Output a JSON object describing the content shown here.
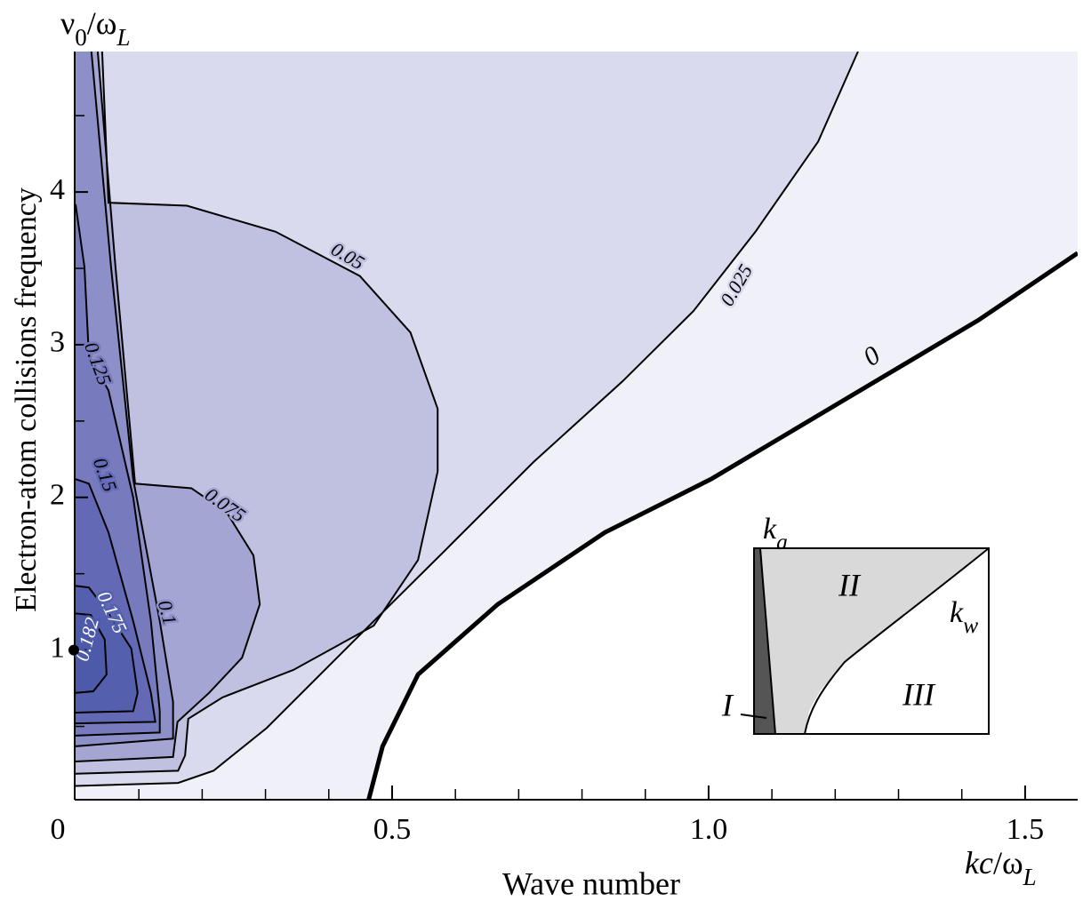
{
  "chart_data": {
    "type": "contour",
    "x_title": "Wave number",
    "y_title": "Electron-atom collisions frequency",
    "x_unit": [
      {
        "text": "kc",
        "italic": true
      },
      {
        "text": "/ω"
      },
      {
        "text": "L",
        "sub": true,
        "italic": true
      }
    ],
    "y_unit": [
      {
        "text": "ν"
      },
      {
        "text": "0",
        "sub": true
      },
      {
        "text": "/ω"
      },
      {
        "text": "L",
        "sub": true,
        "italic": true
      }
    ],
    "xlim": [
      0,
      1.583
    ],
    "ylim": [
      0.02,
      4.92
    ],
    "xticks": [
      0,
      0.5,
      {
        "value": 1,
        "label": "1.0"
      },
      1.5
    ],
    "xminorticks": [
      0.1,
      0.2,
      0.3,
      0.4,
      0.6,
      0.7,
      0.8,
      0.9,
      1.1,
      1.2,
      1.3,
      1.4
    ],
    "yticks": [
      1,
      2,
      3,
      4
    ],
    "yminorticks": [
      0.5,
      1.5,
      2.5,
      3.5,
      4.5
    ],
    "contours": [
      {
        "level": 0,
        "color": "#eff0f8",
        "x": [
          0.463,
          0.485,
          0.541,
          0.667,
          0.836,
          1.004,
          1.215,
          1.426,
          1.583
        ],
        "y": [
          0.02,
          0.37,
          0.84,
          1.3,
          1.77,
          2.12,
          2.64,
          3.16,
          3.6
        ]
      },
      {
        "level": 0.025,
        "color": "#d9daed",
        "x": [
          0,
          0.162,
          0.218,
          0.302,
          0.442,
          0.583,
          0.723,
          0.864,
          0.976,
          1.074,
          1.173,
          1.236
        ],
        "y": [
          0.11,
          0.13,
          0.21,
          0.49,
          1.07,
          1.65,
          2.23,
          2.76,
          3.22,
          3.74,
          4.33,
          4.92
        ]
      },
      {
        "level": 0.05,
        "color": "#c0c1e1",
        "x": [
          0,
          0.162,
          0.173,
          0.178,
          0.232,
          0.344,
          0.471,
          0.541,
          0.572,
          0.572,
          0.529,
          0.449,
          0.316,
          0.176,
          0.052,
          0.042
        ],
        "y": [
          0.19,
          0.21,
          0.31,
          0.55,
          0.69,
          0.87,
          1.16,
          1.59,
          2.17,
          2.58,
          3.08,
          3.45,
          3.74,
          3.91,
          3.93,
          4.92
        ]
      },
      {
        "level": 0.075,
        "color": "#a4a5d3",
        "x": [
          0,
          0.154,
          0.161,
          0.211,
          0.263,
          0.291,
          0.281,
          0.239,
          0.183,
          0.094,
          0.063,
          0.035
        ],
        "y": [
          0.27,
          0.3,
          0.53,
          0.72,
          0.95,
          1.3,
          1.62,
          1.9,
          2.06,
          2.09,
          3.51,
          4.92
        ]
      },
      {
        "level": 0.1,
        "color": "#8d90c8",
        "x": [
          0,
          0.154,
          0.154,
          0.133,
          0.091,
          0.056,
          0.025
        ],
        "y": [
          0.37,
          0.42,
          0.66,
          1.19,
          2.12,
          3.51,
          4.92
        ]
      },
      {
        "level": 0.125,
        "color": "#777bbe",
        "x": [
          0,
          0.133,
          0.133,
          0.119,
          0.091,
          0.052,
          0.021,
          0.014,
          0
        ],
        "y": [
          0.44,
          0.46,
          0.6,
          1.19,
          2.0,
          2.7,
          2.93,
          3.51,
          3.92
        ]
      },
      {
        "level": 0.15,
        "color": "#6369b4",
        "x": [
          0,
          0.126,
          0.119,
          0.091,
          0.052,
          0.021,
          0
        ],
        "y": [
          0.52,
          0.53,
          0.72,
          1.19,
          1.77,
          2.09,
          2.12
        ]
      },
      {
        "level": 0.175,
        "color": "#5460ad",
        "x": [
          0,
          0.091,
          0.098,
          0.088,
          0.052,
          0.021,
          0
        ],
        "y": [
          0.59,
          0.6,
          0.72,
          1.01,
          1.24,
          1.41,
          1.42
        ]
      },
      {
        "level": 0.182,
        "color": "#4d5aa9",
        "x": [
          0,
          0.028,
          0.049,
          0.046,
          0.024,
          0
        ],
        "y": [
          0.72,
          0.73,
          0.84,
          1.07,
          1.23,
          1.24
        ]
      }
    ],
    "marker": {
      "x": 0,
      "y": 1
    },
    "inset": {
      "ka": [
        {
          "text": "k",
          "italic": true
        },
        {
          "text": "a",
          "sub": true,
          "italic": true
        }
      ],
      "kw": [
        {
          "text": "k",
          "italic": true
        },
        {
          "text": "w",
          "sub": true,
          "italic": true
        }
      ],
      "region_1": "I",
      "region_2": "II",
      "region_3": "III"
    }
  }
}
